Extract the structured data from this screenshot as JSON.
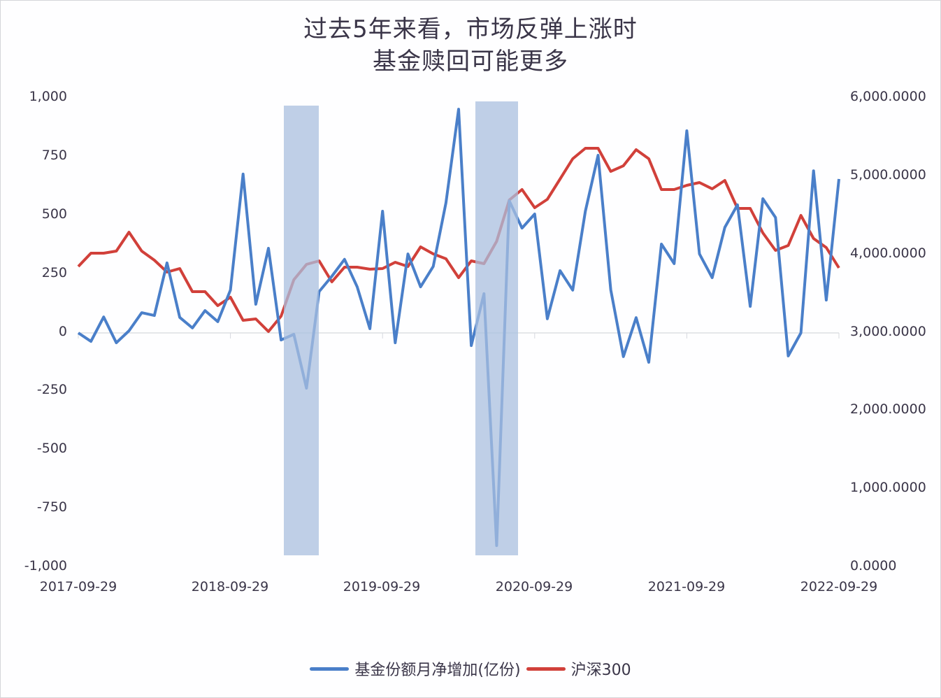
{
  "title": {
    "line1": "过去5年来看，市场反弹上涨时",
    "line2": "基金赎回可能更多"
  },
  "axes": {
    "left_ticks": [
      "1,000",
      "750",
      "500",
      "250",
      "0",
      "-250",
      "-500",
      "-750",
      "-1,000"
    ],
    "right_ticks": [
      "6,000.0000",
      "5,000.0000",
      "4,000.0000",
      "3,000.0000",
      "2,000.0000",
      "1,000.0000",
      "0.0000"
    ],
    "x_ticks": [
      "2017-09-29",
      "2018-09-29",
      "2019-09-29",
      "2020-09-29",
      "2021-09-29",
      "2022-09-29"
    ]
  },
  "legend": {
    "series1": "基金份额月净增加(亿份)",
    "series2": "沪深300"
  },
  "colors": {
    "blue": "#4a7fc9",
    "red": "#d1403a",
    "highlight": "#a9bfdf",
    "text": "#3a3548",
    "axis": "#d6d9de"
  },
  "chart_data": {
    "type": "line",
    "title": "过去5年来看，市场反弹上涨时 基金赎回可能更多",
    "x_start": "2017-09-29",
    "x_end": "2022-09-29",
    "frequency": "monthly",
    "x_tick_labels": [
      "2017-09-29",
      "2018-09-29",
      "2019-09-29",
      "2020-09-29",
      "2021-09-29",
      "2022-09-29"
    ],
    "ylabel_left": "基金份额月净增加(亿份)",
    "ylabel_right": "沪深300",
    "ylim_left": [
      -1000,
      1000
    ],
    "ylim_right": [
      0,
      6000
    ],
    "grid": false,
    "legend_position": "bottom",
    "highlight_bands": [
      {
        "from_index": 16,
        "to_index": 19,
        "label": "2019-01 to 2019-04"
      },
      {
        "from_index": 31,
        "to_index": 34,
        "label": "2020-04 to 2020-07"
      }
    ],
    "series": [
      {
        "name": "基金份额月净增加(亿份)",
        "axis": "left",
        "color": "#4a7fc9",
        "values": [
          0,
          -36,
          68,
          -42,
          9,
          86,
          74,
          298,
          66,
          21,
          95,
          48,
          182,
          676,
          122,
          360,
          -30,
          -6,
          -235,
          176,
          241,
          313,
          196,
          18,
          518,
          -42,
          336,
          196,
          283,
          554,
          952,
          -54,
          167,
          -905,
          562,
          446,
          506,
          60,
          265,
          182,
          518,
          756,
          184,
          -101,
          65,
          -125,
          378,
          295,
          860,
          336,
          235,
          449,
          545,
          113,
          571,
          491,
          -98,
          0,
          690,
          140,
          655
        ]
      },
      {
        "name": "沪深300",
        "axis": "right",
        "color": "#d1403a",
        "values": [
          3848,
          4018,
          4018,
          4045,
          4286,
          4045,
          3929,
          3777,
          3821,
          3527,
          3527,
          3348,
          3455,
          3161,
          3179,
          3018,
          3214,
          3679,
          3875,
          3920,
          3652,
          3839,
          3839,
          3813,
          3821,
          3902,
          3848,
          4098,
          4009,
          3946,
          3705,
          3920,
          3884,
          4170,
          4696,
          4830,
          4598,
          4705,
          4964,
          5223,
          5357,
          5357,
          5062,
          5134,
          5339,
          5223,
          4830,
          4830,
          4884,
          4920,
          4839,
          4946,
          4589,
          4589,
          4277,
          4054,
          4116,
          4500,
          4205,
          4089,
          3830
        ]
      }
    ]
  }
}
